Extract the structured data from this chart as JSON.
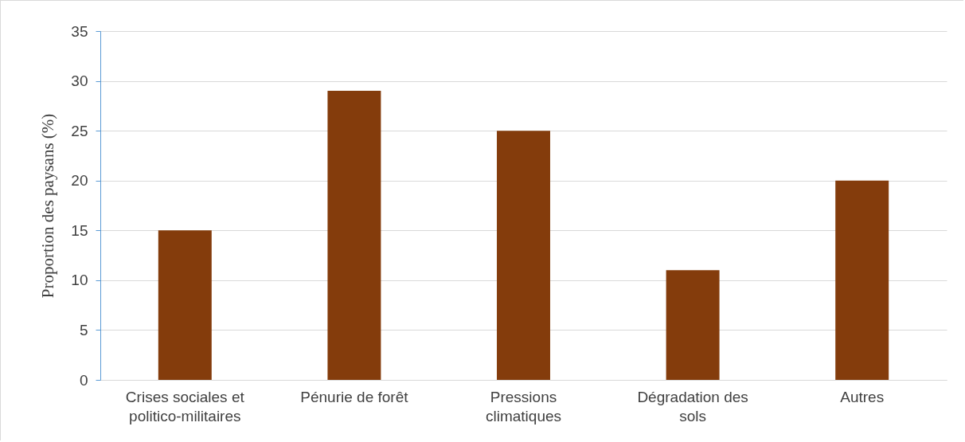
{
  "chart_data": {
    "type": "bar",
    "ylabel": "Proportion des paysans (%)",
    "categories": [
      "Crises sociales et politico-militaires",
      "Pénurie de forêt",
      "Pressions climatiques",
      "Dégradation des sols",
      "Autres"
    ],
    "values": [
      15,
      29,
      25,
      11,
      20
    ],
    "color": "#843c0c",
    "ylim": [
      0,
      35
    ],
    "yticks": [
      0,
      5,
      10,
      15,
      20,
      25,
      30,
      35
    ],
    "grid": "y"
  }
}
